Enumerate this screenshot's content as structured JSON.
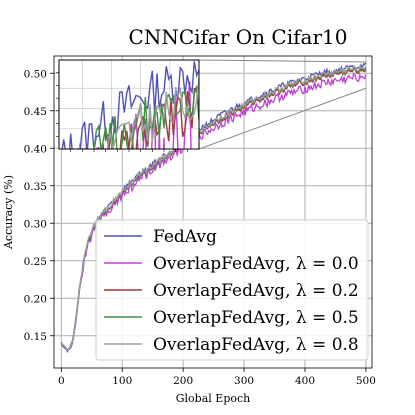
{
  "chart_data": {
    "type": "line",
    "title": "CNNCifar On Cifar10",
    "xlabel": "Global Epoch",
    "ylabel": "Accuracy (%)",
    "xlim": [
      -12,
      510
    ],
    "ylim": [
      0.107,
      0.523
    ],
    "xticks": [
      0,
      100,
      200,
      300,
      400,
      500
    ],
    "yticks": [
      0.15,
      0.2,
      0.25,
      0.3,
      0.35,
      0.4,
      0.45,
      0.5
    ],
    "grid": true,
    "legend_position": "lower-right",
    "series": [
      {
        "name": "FedAvg",
        "color": "#5151b8",
        "x": [
          0,
          5,
          10,
          15,
          20,
          25,
          30,
          40,
          50,
          60,
          70,
          80,
          90,
          100,
          120,
          140,
          160,
          180,
          200,
          220,
          240,
          260,
          280,
          300,
          320,
          340,
          360,
          380,
          400,
          420,
          440,
          460,
          480,
          500
        ],
        "y": [
          0.14,
          0.135,
          0.13,
          0.135,
          0.15,
          0.18,
          0.215,
          0.265,
          0.29,
          0.305,
          0.315,
          0.325,
          0.333,
          0.343,
          0.36,
          0.372,
          0.385,
          0.397,
          0.41,
          0.422,
          0.432,
          0.443,
          0.452,
          0.46,
          0.468,
          0.475,
          0.482,
          0.488,
          0.493,
          0.498,
          0.502,
          0.505,
          0.508,
          0.51
        ],
        "noise": 0.004
      },
      {
        "name": "OverlapFedAvg, λ = 0.0",
        "color": "#bf40d9",
        "x": [
          0,
          5,
          10,
          15,
          20,
          25,
          30,
          40,
          50,
          60,
          70,
          80,
          90,
          100,
          120,
          140,
          160,
          180,
          200,
          220,
          240,
          260,
          280,
          300,
          320,
          340,
          360,
          380,
          400,
          420,
          440,
          460,
          480,
          500
        ],
        "y": [
          0.14,
          0.135,
          0.128,
          0.132,
          0.148,
          0.175,
          0.21,
          0.26,
          0.285,
          0.3,
          0.31,
          0.32,
          0.328,
          0.336,
          0.352,
          0.365,
          0.378,
          0.39,
          0.402,
          0.413,
          0.422,
          0.432,
          0.44,
          0.448,
          0.455,
          0.462,
          0.469,
          0.474,
          0.479,
          0.484,
          0.488,
          0.491,
          0.494,
          0.497
        ],
        "noise": 0.006
      },
      {
        "name": "OverlapFedAvg, λ = 0.2",
        "color": "#a03a3a",
        "x": [
          0,
          5,
          10,
          15,
          20,
          25,
          30,
          40,
          50,
          60,
          70,
          80,
          90,
          100,
          120,
          140,
          160,
          180,
          200,
          220,
          240,
          260,
          280,
          300,
          320,
          340,
          360,
          380,
          400,
          420,
          440,
          460,
          480,
          500
        ],
        "y": [
          0.14,
          0.135,
          0.13,
          0.134,
          0.15,
          0.178,
          0.213,
          0.263,
          0.288,
          0.303,
          0.313,
          0.323,
          0.331,
          0.34,
          0.357,
          0.369,
          0.382,
          0.394,
          0.406,
          0.418,
          0.428,
          0.438,
          0.447,
          0.455,
          0.463,
          0.47,
          0.477,
          0.483,
          0.488,
          0.493,
          0.497,
          0.5,
          0.503,
          0.505
        ],
        "noise": 0.004
      },
      {
        "name": "OverlapFedAvg, λ = 0.5",
        "color": "#3f8f3f",
        "x": [
          0,
          5,
          10,
          15,
          20,
          25,
          30,
          40,
          50,
          60,
          70,
          80,
          90,
          100,
          120,
          140,
          160,
          180,
          200,
          220,
          240,
          260,
          280,
          300,
          320,
          340,
          360,
          380,
          400,
          420,
          440,
          460,
          480,
          500
        ],
        "y": [
          0.14,
          0.135,
          0.13,
          0.134,
          0.15,
          0.178,
          0.214,
          0.264,
          0.289,
          0.304,
          0.314,
          0.324,
          0.332,
          0.341,
          0.358,
          0.37,
          0.383,
          0.395,
          0.407,
          0.419,
          0.429,
          0.44,
          0.449,
          0.457,
          0.465,
          0.472,
          0.479,
          0.485,
          0.49,
          0.495,
          0.499,
          0.502,
          0.505,
          0.507
        ],
        "noise": 0.004
      },
      {
        "name": "OverlapFedAvg, λ = 0.8",
        "color": "#a0a0a0",
        "x": [
          0,
          5,
          10,
          15,
          20,
          25,
          30,
          40,
          50,
          60,
          70,
          80,
          90,
          100,
          120,
          140,
          160,
          180,
          200,
          220,
          240,
          260,
          280,
          300,
          320,
          340,
          360,
          380,
          400,
          420,
          440,
          460,
          480,
          500
        ],
        "y": [
          0.14,
          0.135,
          0.13,
          0.134,
          0.15,
          0.178,
          0.214,
          0.265,
          0.29,
          0.305,
          0.315,
          0.325,
          0.333,
          0.342,
          0.359,
          0.371,
          0.384,
          0.396,
          0.408,
          0.42,
          0.43,
          0.441,
          0.45,
          0.458,
          0.466,
          0.473,
          0.48,
          0.486,
          0.491,
          0.496,
          0.5,
          0.503,
          0.506,
          0.509
        ],
        "noise": 0.004
      }
    ],
    "inset": {
      "xlim": [
        380,
        500
      ],
      "ylim": [
        0.495,
        0.517
      ],
      "connect_to_box": {
        "x": [
          380,
          500
        ],
        "y": [
          0.48,
          0.515
        ]
      }
    }
  }
}
